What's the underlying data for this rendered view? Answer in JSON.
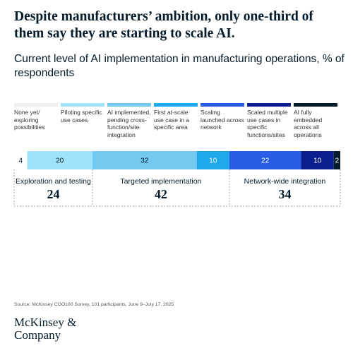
{
  "title": "Despite manufacturers’ ambition, only one-third of them say they are starting to scale AI.",
  "chart_data": {
    "type": "bar",
    "orientation": "horizontal",
    "stacked": true,
    "title": "Current level of AI implementation in manufacturing operations, % of respondents",
    "categories": [
      null
    ],
    "xlim": [
      0,
      100
    ],
    "series": [
      {
        "name": "None yet/ exploring possibilities",
        "color": "#ffffff",
        "values": [
          4
        ]
      },
      {
        "name": "Piloting specific use cases",
        "color": "#9fe2f9",
        "values": [
          20
        ]
      },
      {
        "name": "AI implemented, pending cross-function/site integration",
        "color": "#74c9f1",
        "values": [
          32
        ]
      },
      {
        "name": "First at-scale use case in a specific area",
        "color": "#1fa8eb",
        "values": [
          10
        ]
      },
      {
        "name": "Scaling launched across network",
        "color": "#2a5de6",
        "values": [
          22
        ]
      },
      {
        "name": "Scaled multiple use cases in specific functions/sites",
        "color": "#0d1f8f",
        "values": [
          10
        ]
      },
      {
        "name": "AI fully embedded across all operations",
        "color": "#051c2c",
        "values": [
          2
        ]
      }
    ],
    "groups": [
      {
        "label": "Exploration and testing",
        "value": 24
      },
      {
        "label": "Targeted implementation",
        "value": 42
      },
      {
        "label": "Network-wide integration",
        "value": 34
      }
    ]
  },
  "source": "Source: McKinsey COO100 Survey, 101 participants, June 9–July 17, 2025",
  "logo": "McKinsey & Company"
}
